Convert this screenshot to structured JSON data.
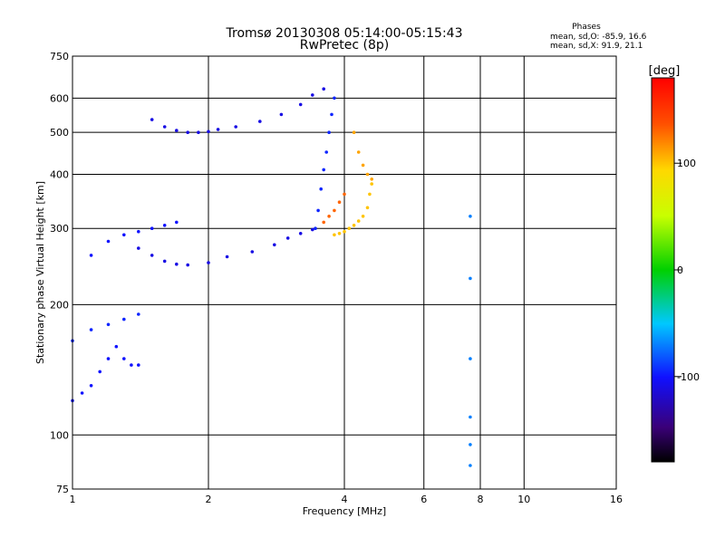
{
  "chart_data": {
    "type": "scatter",
    "title": "Tromsø 20130308 05:14:00-05:15:43",
    "subtitle": "RwPretec (8p)",
    "xlabel": "Frequency [MHz]",
    "ylabel": "Stationary phase Virtual Height [km]",
    "x_scale": "log",
    "y_scale": "log",
    "xlim": [
      1,
      16
    ],
    "ylim": [
      75,
      750
    ],
    "x_ticks": [
      1,
      2,
      4,
      6,
      8,
      10,
      16
    ],
    "y_ticks": [
      75,
      100,
      200,
      300,
      400,
      500,
      600,
      750
    ],
    "grid": true,
    "stats": {
      "heading": "Phases",
      "line_o": "mean, sd,O: -85.9, 16.6",
      "line_x": "mean, sd,X:  91.9, 21.1"
    },
    "colorbar": {
      "label": "[deg]",
      "range": [
        -180,
        180
      ],
      "ticks": [
        100,
        0,
        -100
      ],
      "colormap": "rainbow"
    },
    "series": [
      {
        "traces": [
          {
            "x": [
              1.0,
              1.05,
              1.1,
              1.15,
              1.2,
              1.25,
              1.3,
              1.35,
              1.4
            ],
            "y": [
              120,
              125,
              130,
              140,
              150,
              160,
              150,
              145,
              145
            ],
            "phase": -100
          },
          {
            "x": [
              1.0,
              1.1,
              1.2,
              1.3,
              1.4
            ],
            "y": [
              165,
              175,
              180,
              185,
              190
            ],
            "phase": -95
          },
          {
            "x": [
              1.1,
              1.2,
              1.3,
              1.4,
              1.5,
              1.6,
              1.7
            ],
            "y": [
              260,
              280,
              290,
              295,
              300,
              305,
              310
            ],
            "phase": -100
          },
          {
            "x": [
              1.4,
              1.5,
              1.6,
              1.7,
              1.8,
              2.0,
              2.2,
              2.5,
              2.8,
              3.0,
              3.2,
              3.4
            ],
            "y": [
              270,
              260,
              252,
              248,
              247,
              250,
              258,
              265,
              275,
              285,
              292,
              298
            ],
            "phase": -110
          },
          {
            "x": [
              1.5,
              1.6,
              1.7,
              1.8,
              1.9,
              2.0,
              2.1,
              2.3,
              2.6,
              2.9,
              3.2,
              3.4,
              3.6
            ],
            "y": [
              535,
              515,
              505,
              500,
              500,
              502,
              508,
              515,
              530,
              550,
              580,
              610,
              630
            ],
            "phase": -110
          },
          {
            "x": [
              3.45,
              3.5,
              3.55,
              3.6,
              3.65,
              3.7,
              3.75,
              3.8
            ],
            "y": [
              300,
              330,
              370,
              410,
              450,
              500,
              550,
              600
            ],
            "phase": -95
          },
          {
            "x": [
              3.8,
              3.9,
              4.0,
              4.1,
              4.2,
              4.3,
              4.4,
              4.5,
              4.55,
              4.6
            ],
            "y": [
              290,
              292,
              295,
              300,
              305,
              312,
              320,
              335,
              360,
              380
            ],
            "phase": 100
          },
          {
            "x": [
              4.2,
              4.3,
              4.4,
              4.5,
              4.6
            ],
            "y": [
              500,
              450,
              420,
              400,
              390
            ],
            "phase": 110
          },
          {
            "x": [
              3.6,
              3.7,
              3.8,
              3.9,
              4.0
            ],
            "y": [
              310,
              320,
              330,
              345,
              360
            ],
            "phase": 130
          },
          {
            "x": [
              7.6,
              7.6,
              7.6,
              7.6,
              7.6,
              7.6
            ],
            "y": [
              85,
              95,
              110,
              150,
              230,
              320
            ],
            "phase": -70
          }
        ]
      }
    ]
  }
}
